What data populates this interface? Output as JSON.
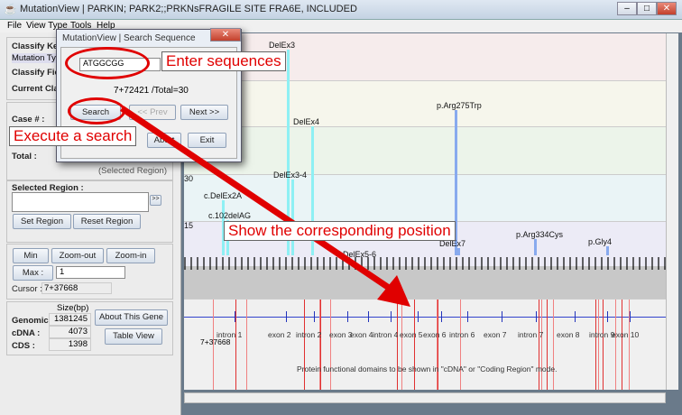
{
  "window": {
    "title": "MutationView | PARKIN; PARK2;;PRKNsFRAGILE SITE FRA6E, INCLUDED"
  },
  "menu": [
    "File",
    "View Type",
    "Tools",
    "Help"
  ],
  "left": {
    "classify_key": "Classify Key :",
    "classify_key_value": "Mutation Type",
    "classify_field": "Classify Field",
    "current_class": "Current Class",
    "case": "Case # :",
    "total": "Total :",
    "selected_region_note": "(Selected Region)",
    "selected_region": "Selected Region :",
    "expand": ">>",
    "set_region": "Set Region",
    "reset_region": "Reset Region",
    "min": "Min",
    "zoom_out": "Zoom-out",
    "zoom_in": "Zoom-in",
    "max": "Max :",
    "max_value": "1",
    "cursor_label": "Cursor :",
    "cursor_value": "7+37668",
    "size_header": "Size(bp)",
    "genomic_label": "Genomic :",
    "genomic": "1381245",
    "cdna_label": "cDNA :",
    "cdna": "4073",
    "cds_label": "CDS :",
    "cds": "1398",
    "about": "About This Gene",
    "table_view": "Table View"
  },
  "dialog": {
    "title": "MutationView | Search Sequence",
    "query": "ATGGCGG",
    "result": "7+72421 /Total=30",
    "search": "Search",
    "prev": "<< Prev",
    "next": "Next >>",
    "abort": "Abort",
    "exit": "Exit"
  },
  "chart": {
    "y_ticks": [
      "30",
      "15"
    ],
    "mutations": [
      {
        "label": "DelEx3",
        "color": "#8ef0f4"
      },
      {
        "label": "DelEx4",
        "color": "#8ef0f4"
      },
      {
        "label": "p.Arg275Trp",
        "color": "#88aaee"
      },
      {
        "label": "DelEx3-4",
        "color": "#8ef0f4"
      },
      {
        "label": "c.DelEx2A",
        "color": "#8ef0f4"
      },
      {
        "label": "c.102delAG",
        "color": "#8ef0f4"
      },
      {
        "label": "p.Arg334Cys",
        "color": "#88aaee"
      },
      {
        "label": "DelEx7",
        "color": "#88aaee"
      },
      {
        "label": "DelEx5-6",
        "color": "#8ef0f4"
      },
      {
        "label": "p.Gly4",
        "color": "#88aaee"
      }
    ]
  },
  "gene": {
    "cursor": "7+37668",
    "regions": [
      "intron 1",
      "exon 2",
      "intron 2",
      "exon 3",
      "exon 4",
      "intron 4",
      "exon 5",
      "exon 6",
      "intron 6",
      "exon 7",
      "intron 7",
      "exon 8",
      "intron 9",
      "exon 10"
    ],
    "note": "Protein functional domains to be shown in \"cDNA\" or \"Coding Region\" mode."
  },
  "annotations": {
    "enter": "Enter sequences",
    "execute": "Execute a search",
    "show": "Show the corresponding position"
  }
}
